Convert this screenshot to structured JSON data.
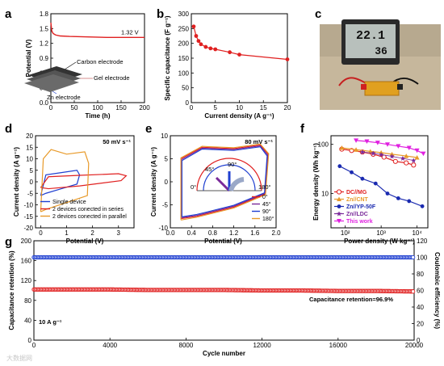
{
  "panel_letters": [
    "a",
    "b",
    "c",
    "d",
    "e",
    "f",
    "g"
  ],
  "watermark": "大数据网",
  "colors": {
    "red": "#e02020",
    "blue": "#1f3fd0",
    "orange": "#e89a2a",
    "magenta": "#e020e0",
    "purple": "#7a2a9a",
    "navy": "#1a2ab0"
  },
  "chart_data": [
    {
      "id": "a",
      "type": "line",
      "xlabel": "Time (h)",
      "ylabel": "Potential (V)",
      "xlim": [
        0,
        200
      ],
      "ylim": [
        0,
        1.8
      ],
      "xticks": [
        0,
        50,
        100,
        150,
        200
      ],
      "yticks": [
        0.0,
        0.3,
        0.6,
        0.9,
        1.2,
        1.5,
        1.8
      ],
      "series": [
        {
          "color": "#e02020",
          "x": [
            0,
            2,
            5,
            10,
            20,
            40,
            80,
            120,
            160,
            200
          ],
          "y": [
            1.62,
            1.45,
            1.4,
            1.37,
            1.35,
            1.34,
            1.33,
            1.32,
            1.32,
            1.32
          ]
        }
      ],
      "annotations": [
        "1.32 V",
        "Carbon electrode",
        "Gel electrode",
        "Zn electrode"
      ]
    },
    {
      "id": "b",
      "type": "line",
      "xlabel": "Current density (A g⁻¹)",
      "ylabel": "Specific capacitance (F g⁻¹)",
      "xlim": [
        0,
        20
      ],
      "ylim": [
        0,
        300
      ],
      "xticks": [
        0,
        5,
        10,
        15,
        20
      ],
      "yticks": [
        0,
        50,
        100,
        150,
        200,
        250,
        300
      ],
      "series": [
        {
          "color": "#e02020",
          "x": [
            0.5,
            1,
            1.5,
            2,
            3,
            4,
            5,
            8,
            10,
            20
          ],
          "y": [
            257,
            225,
            208,
            197,
            188,
            183,
            180,
            170,
            162,
            146
          ]
        }
      ]
    },
    {
      "id": "d",
      "type": "line",
      "annotation": "50 mV s⁻¹",
      "xlabel": "Potential (V)",
      "ylabel": "Current density (A g⁻¹)",
      "xlim": [
        -0.2,
        3.6
      ],
      "ylim": [
        -20,
        20
      ],
      "xticks": [
        0,
        1,
        2,
        3
      ],
      "yticks": [
        -20,
        -15,
        -10,
        -5,
        0,
        5,
        10,
        15,
        20
      ],
      "legend": [
        "Single device",
        "2 devices conected in series",
        "2 devices conected in parallel"
      ],
      "series": [
        {
          "name": "Single device",
          "color": "#1f3fd0",
          "x": [
            0,
            0.2,
            0.8,
            1.4,
            1.5,
            1.4,
            0.8,
            0.2,
            0
          ],
          "y": [
            -6,
            -5,
            -3,
            -1,
            3,
            5,
            4,
            3,
            -6
          ]
        },
        {
          "name": "2 devices conected in series",
          "color": "#e02020",
          "x": [
            0,
            0.3,
            1.5,
            3.1,
            3.3,
            3.0,
            1.5,
            0.3,
            0
          ],
          "y": [
            -2.5,
            -3,
            -1.8,
            0.5,
            2.6,
            3.5,
            2.8,
            2.2,
            -2.5
          ]
        },
        {
          "name": "2 devices conected in parallel",
          "color": "#e89a2a",
          "x": [
            0,
            0.2,
            1.0,
            1.8,
            1.85,
            1.7,
            1.0,
            0.4,
            0.1,
            0
          ],
          "y": [
            -13,
            -12,
            -9,
            -6,
            8,
            13,
            12,
            14,
            10,
            -13
          ]
        }
      ]
    },
    {
      "id": "e",
      "type": "line",
      "annotation": "80 mV s⁻¹",
      "xlabel": "Potential (V)",
      "ylabel": "Current density (A g⁻¹)",
      "xlim": [
        0,
        2.0
      ],
      "ylim": [
        -10,
        10
      ],
      "xticks": [
        0.0,
        0.4,
        0.8,
        1.2,
        1.6,
        2.0
      ],
      "yticks": [
        -10,
        -5,
        0,
        5,
        10
      ],
      "legend": [
        "0°",
        "45°",
        "90°",
        "180°"
      ],
      "inset_labels": [
        "0°",
        "45°",
        "90°",
        "180°"
      ],
      "series": [
        {
          "name": "0°",
          "color": "#e02020",
          "x": [
            0.2,
            0.5,
            1.2,
            1.8,
            1.85,
            1.7,
            1.2,
            0.6,
            0.2,
            0.2
          ],
          "y": [
            -8,
            -7.5,
            -5.5,
            -2.6,
            6,
            8,
            7.2,
            7.5,
            5,
            -8
          ]
        },
        {
          "name": "45°",
          "color": "#7a2a9a",
          "x": [
            0.21,
            0.5,
            1.2,
            1.79,
            1.84,
            1.7,
            1.2,
            0.6,
            0.21,
            0.21
          ],
          "y": [
            -7.8,
            -7.3,
            -5.3,
            -2.5,
            5.8,
            7.8,
            7.0,
            7.3,
            4.8,
            -7.8
          ]
        },
        {
          "name": "90°",
          "color": "#1f3fd0",
          "x": [
            0.22,
            0.5,
            1.2,
            1.78,
            1.83,
            1.7,
            1.2,
            0.6,
            0.22,
            0.22
          ],
          "y": [
            -7.6,
            -7.1,
            -5.1,
            -2.4,
            5.6,
            7.6,
            6.8,
            7.1,
            4.6,
            -7.6
          ]
        },
        {
          "name": "180°",
          "color": "#e89a2a",
          "x": [
            0.2,
            0.5,
            1.2,
            1.8,
            1.86,
            1.7,
            1.2,
            0.6,
            0.2,
            0.2
          ],
          "y": [
            -8.3,
            -7.7,
            -5.7,
            -2.8,
            6.1,
            8.2,
            7.4,
            7.7,
            5.2,
            -8.3
          ]
        }
      ]
    },
    {
      "id": "f",
      "type": "scatter",
      "xlabel": "Power density (W kg⁻¹)",
      "ylabel": "Energy density (Wh kg⁻¹)",
      "xlog": true,
      "ylog": true,
      "xlim": [
        40,
        20000
      ],
      "ylim": [
        2,
        150
      ],
      "xticklabels": [
        "10²",
        "10³",
        "10⁴"
      ],
      "yticklabels": [
        "10",
        "100"
      ],
      "legend": [
        "DC//MG",
        "Zn//CNT",
        "Zn//YP-50F",
        "Zn//LDC",
        "This work"
      ],
      "series": [
        {
          "name": "DC//MG",
          "color": "#e02020",
          "marker": "circle-open",
          "x": [
            80,
            150,
            300,
            600,
            1200,
            2500,
            5000,
            8000
          ],
          "y": [
            80,
            75,
            70,
            63,
            55,
            45,
            42,
            38
          ]
        },
        {
          "name": "Zn//CNT",
          "color": "#e89a2a",
          "marker": "triangle",
          "x": [
            80,
            200,
            500,
            1000,
            2000,
            5000,
            10000
          ],
          "y": [
            85,
            78,
            72,
            68,
            63,
            58,
            54
          ]
        },
        {
          "name": "Zn//YP-50F",
          "color": "#1a2ab0",
          "marker": "circle",
          "x": [
            70,
            150,
            300,
            700,
            1500,
            3000,
            6000,
            14000
          ],
          "y": [
            36,
            27,
            20,
            16,
            10,
            8,
            7,
            5.5
          ]
        },
        {
          "name": "Zn//LDC",
          "color": "#7a2a9a",
          "marker": "star",
          "x": [
            300,
            600,
            1000,
            2000,
            4000,
            8000
          ],
          "y": [
            70,
            66,
            62,
            57,
            52,
            47
          ]
        },
        {
          "name": "This work",
          "color": "#e020e0",
          "marker": "triangle-down",
          "x": [
            200,
            400,
            800,
            1500,
            3000,
            6000,
            10000,
            15000
          ],
          "y": [
            120,
            115,
            108,
            100,
            92,
            85,
            75,
            65
          ]
        }
      ]
    },
    {
      "id": "g",
      "type": "scatter",
      "annotation_lower": "10 A g⁻¹",
      "annotation_retention": "Capacitance retention=96.9%",
      "xlabel": "Cycle number",
      "ylabel": "Capacitance retention (%)",
      "ylabel_right": "Coulombic efficiency (%)",
      "xlim": [
        0,
        20000
      ],
      "ylim": [
        0,
        200
      ],
      "ylim_right": [
        0,
        120
      ],
      "xticks": [
        0,
        4000,
        8000,
        12000,
        16000,
        20000
      ],
      "yticks": [
        0,
        40,
        80,
        120,
        160,
        200
      ],
      "yticks_right": [
        0,
        20,
        40,
        60,
        80,
        100,
        120
      ],
      "series": [
        {
          "name": "Capacitance retention",
          "color": "#e02020",
          "axis": "left",
          "x": [
            0,
            2000,
            4000,
            6000,
            8000,
            10000,
            12000,
            14000,
            16000,
            18000,
            20000
          ],
          "y": [
            102,
            102,
            102,
            101,
            101,
            101,
            100,
            100,
            99,
            99,
            98
          ]
        },
        {
          "name": "Coulombic efficiency",
          "color": "#1f3fd0",
          "axis": "right",
          "x": [
            0,
            2000,
            4000,
            6000,
            8000,
            10000,
            12000,
            14000,
            16000,
            18000,
            20000
          ],
          "y": [
            100,
            100,
            100,
            100,
            100,
            100,
            100,
            100,
            100,
            100,
            100
          ]
        }
      ]
    }
  ],
  "meter": {
    "line1": "22.1",
    "line2": "36"
  }
}
